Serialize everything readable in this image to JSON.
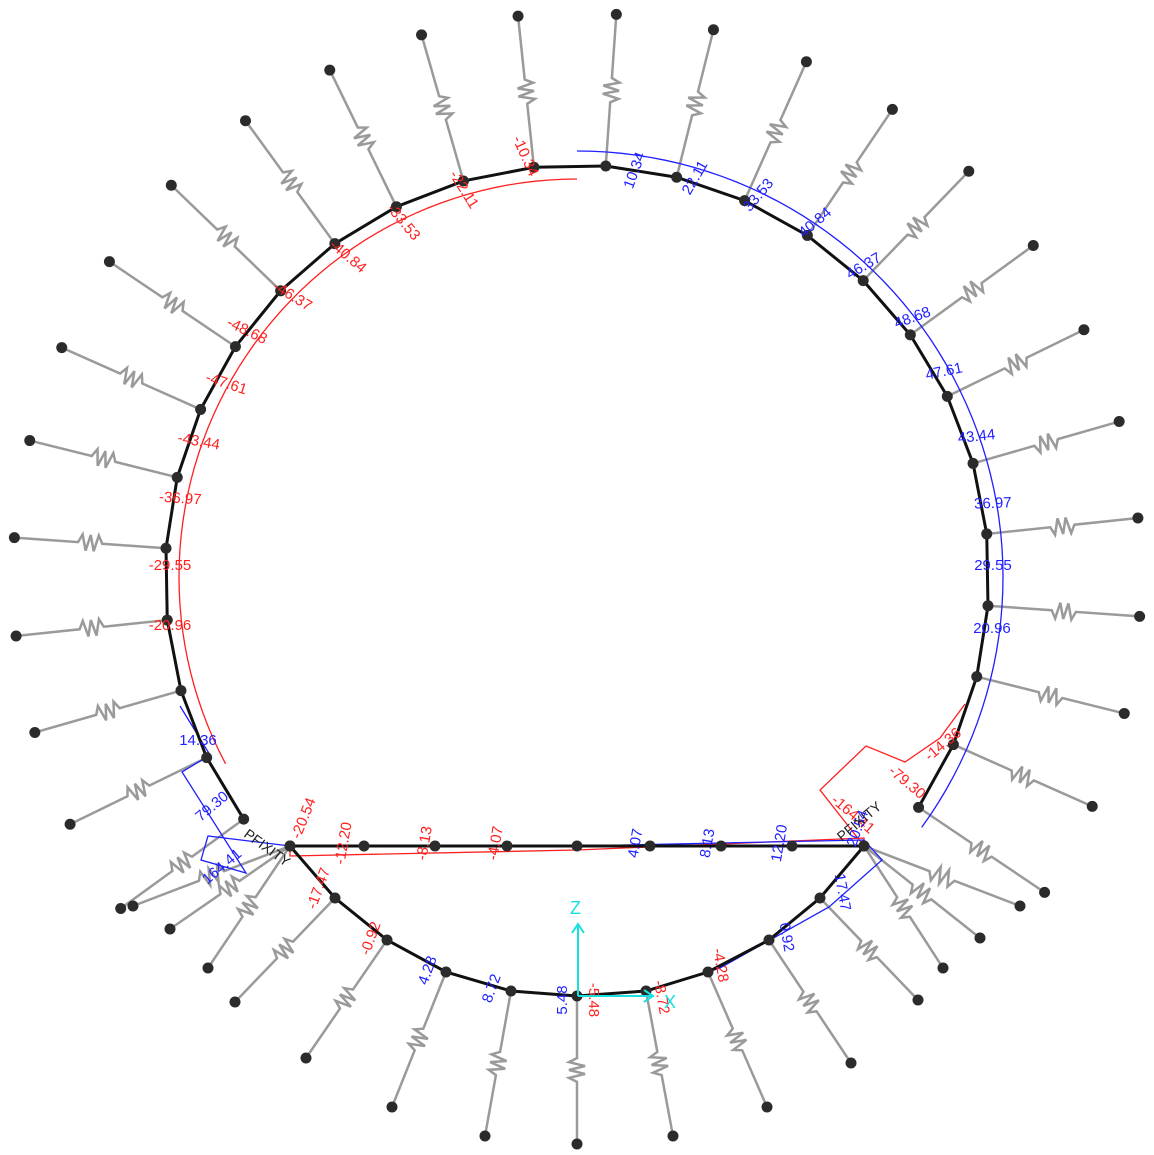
{
  "colors": {
    "spring": "#9a9a9a",
    "node": "#2b2b2b",
    "structure": "#111111",
    "positive": "#1f1fff",
    "negative": "#ff2020",
    "axis": "#19e0e0",
    "support_text": "#222222"
  },
  "axes": {
    "z_label": "Z",
    "x_label": "X"
  },
  "supports": {
    "left_label": "PFIXITY",
    "right_label": "PFIXITY"
  },
  "ring_labels": [
    {
      "text": "10.34",
      "color": "positive"
    },
    {
      "text": "22.11",
      "color": "positive"
    },
    {
      "text": "33.53",
      "color": "positive"
    },
    {
      "text": "40.84",
      "color": "positive"
    },
    {
      "text": "46.37",
      "color": "positive"
    },
    {
      "text": "48.68",
      "color": "positive"
    },
    {
      "text": "47.61",
      "color": "positive"
    },
    {
      "text": "43.44",
      "color": "positive"
    },
    {
      "text": "36.97",
      "color": "positive"
    },
    {
      "text": "29.55",
      "color": "positive"
    },
    {
      "text": "20.96",
      "color": "positive"
    },
    {
      "text": "-14.36",
      "color": "negative"
    },
    {
      "text": "-10.34",
      "color": "negative"
    },
    {
      "text": "-22.11",
      "color": "negative"
    },
    {
      "text": "-33.53",
      "color": "negative"
    },
    {
      "text": "-40.84",
      "color": "negative"
    },
    {
      "text": "-46.37",
      "color": "negative"
    },
    {
      "text": "-48.68",
      "color": "negative"
    },
    {
      "text": "-47.61",
      "color": "negative"
    },
    {
      "text": "-43.44",
      "color": "negative"
    },
    {
      "text": "-36.97",
      "color": "negative"
    },
    {
      "text": "-29.55",
      "color": "negative"
    },
    {
      "text": "-20.96",
      "color": "negative"
    },
    {
      "text": "14.36",
      "color": "positive"
    },
    {
      "text": "79.30",
      "color": "positive"
    },
    {
      "text": "164.41",
      "color": "positive"
    },
    {
      "text": "-79.30",
      "color": "negative"
    },
    {
      "text": "-164.41",
      "color": "negative"
    }
  ],
  "strut_labels": [
    {
      "text": "-12.20",
      "color": "negative"
    },
    {
      "text": "-8.13",
      "color": "negative"
    },
    {
      "text": "-4.07",
      "color": "negative"
    },
    {
      "text": "4.07",
      "color": "positive"
    },
    {
      "text": "8.13",
      "color": "positive"
    },
    {
      "text": "12.20",
      "color": "positive"
    }
  ],
  "invert_labels": [
    {
      "text": "-17.47",
      "color": "negative"
    },
    {
      "text": "-0.92",
      "color": "negative"
    },
    {
      "text": "4.28",
      "color": "positive"
    },
    {
      "text": "8.72",
      "color": "positive"
    },
    {
      "text": "5.48",
      "color": "positive"
    },
    {
      "text": "-5.48",
      "color": "negative"
    },
    {
      "text": "-8.72",
      "color": "negative"
    },
    {
      "text": "-4.28",
      "color": "negative"
    },
    {
      "text": "0.92",
      "color": "positive"
    },
    {
      "text": "17.47",
      "color": "positive"
    },
    {
      "text": "-20.54",
      "color": "negative"
    },
    {
      "text": "20.54",
      "color": "positive"
    }
  ]
}
